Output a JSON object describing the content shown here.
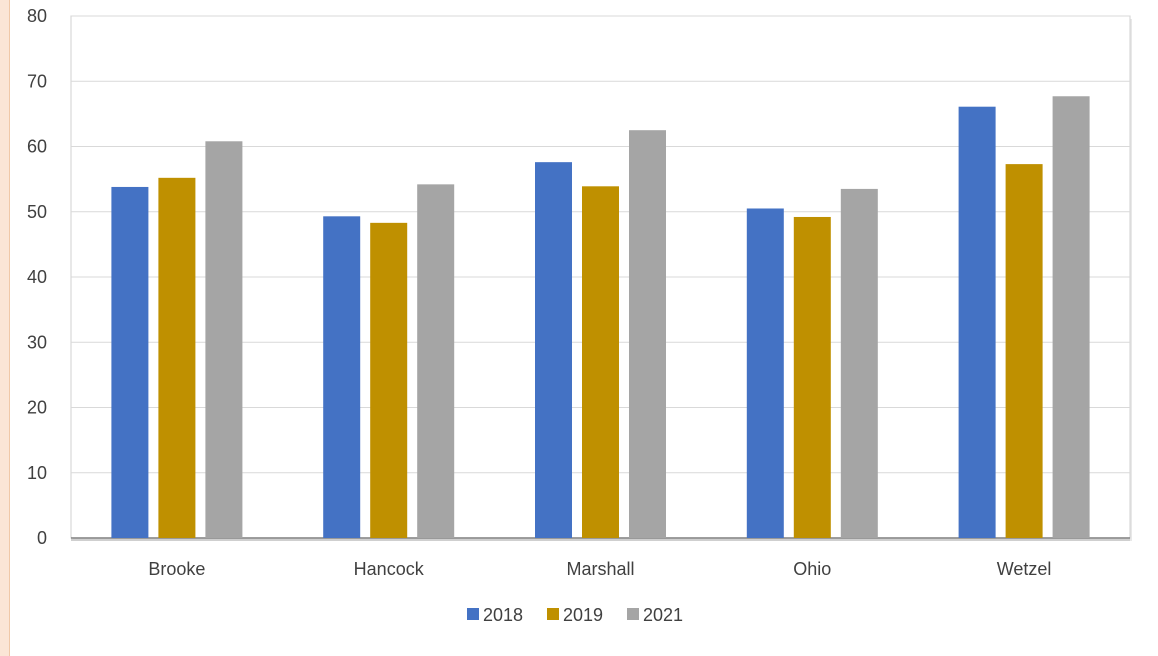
{
  "colors": {
    "series_2018": "#4472c4",
    "series_2019": "#bf9000",
    "series_2021": "#a5a5a5",
    "gridline": "#d9d9d9",
    "text": "#404040"
  },
  "chart_data": {
    "type": "bar",
    "title": "",
    "xlabel": "",
    "ylabel": "",
    "categories": [
      "Brooke",
      "Hancock",
      "Marshall",
      "Ohio",
      "Wetzel"
    ],
    "series": [
      {
        "name": "2018",
        "values": [
          53.8,
          49.3,
          57.6,
          50.5,
          66.1
        ]
      },
      {
        "name": "2019",
        "values": [
          55.2,
          48.3,
          53.9,
          49.2,
          57.3
        ]
      },
      {
        "name": "2021",
        "values": [
          60.8,
          54.2,
          62.5,
          53.5,
          67.7
        ]
      }
    ],
    "ylim": [
      0,
      80
    ],
    "yticks": [
      "0",
      "10",
      "20",
      "30",
      "40",
      "50",
      "60",
      "70",
      "80"
    ],
    "grid": true,
    "legend_position": "bottom-center"
  }
}
